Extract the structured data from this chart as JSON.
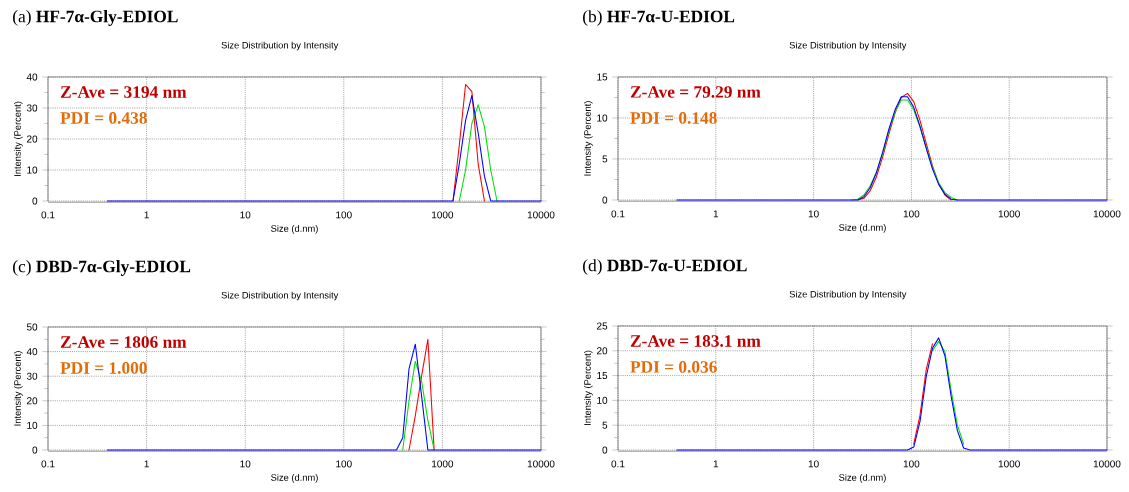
{
  "chart_data": [
    {
      "type": "line",
      "title": "(a) **HF-7α-Gly-EDIOL**",
      "subtitle": "Size Distribution by Intensity",
      "xlabel": "Size (d.nm)",
      "ylabel": "Intensity (Percent)",
      "annotations": [
        "Z-Ave = 3194 nm",
        "PDI = 0.438"
      ],
      "log": "x",
      "grid": true,
      "xlim": [
        0.1,
        10000
      ],
      "ylim": [
        0,
        40
      ],
      "xticks": [
        0.1,
        1,
        10,
        100,
        1000,
        10000
      ],
      "yticks": [
        0,
        10,
        20,
        30,
        40
      ],
      "series": [
        {
          "color": "#ff0000",
          "x": [
            1281,
            1484,
            1718,
            1990,
            2305,
            2669
          ],
          "values": [
            0,
            18,
            37.6,
            35.3,
            12,
            0
          ]
        },
        {
          "color": "#00e000",
          "x": [
            1484,
            1718,
            1990,
            2305,
            2669,
            3091,
            3580
          ],
          "values": [
            0,
            10,
            25,
            31,
            24,
            10,
            0
          ]
        },
        {
          "color": "#0000ff",
          "x": [
            0.4,
            1281,
            1484,
            1718,
            1990,
            2305,
            2669,
            3091,
            10000
          ],
          "values": [
            0,
            0,
            12,
            26,
            34,
            22,
            8,
            0,
            0
          ]
        }
      ]
    },
    {
      "type": "line",
      "title": "(b) **HF-7α-U-EDIOL**",
      "subtitle": "Size Distribution by Intensity",
      "xlabel": "Size (d.nm)",
      "ylabel": "Intensity (Percent)",
      "annotations": [
        "Z-Ave = 79.29 nm",
        "PDI = 0.148"
      ],
      "log": "x",
      "grid": true,
      "xlim": [
        0.1,
        10000
      ],
      "ylim": [
        0,
        15
      ],
      "xticks": [
        0.1,
        1,
        10,
        100,
        1000,
        10000
      ],
      "yticks": [
        0,
        5,
        10,
        15
      ],
      "series": [
        {
          "color": "#ff0000",
          "x": [
            28.21,
            32.67,
            37.84,
            43.82,
            50.75,
            58.77,
            68.06,
            78.82,
            91.28,
            105.7,
            122.4,
            141.8,
            164.2,
            190.1,
            220.2,
            255.0
          ],
          "values": [
            0,
            0.2,
            1.1,
            2.8,
            5.2,
            8.0,
            10.6,
            12.5,
            13.0,
            12.0,
            9.7,
            6.9,
            4.2,
            2.0,
            0.6,
            0
          ]
        },
        {
          "color": "#00e000",
          "x": [
            24.36,
            28.21,
            32.67,
            37.84,
            43.82,
            50.75,
            58.77,
            68.06,
            78.82,
            91.28,
            105.7,
            122.4,
            141.8,
            164.2,
            190.1,
            220.2,
            255.0,
            295.3
          ],
          "values": [
            0,
            0.1,
            0.6,
            1.7,
            3.4,
            5.6,
            8.4,
            10.7,
            12.2,
            12.2,
            11.0,
            8.9,
            6.4,
            4.0,
            2.1,
            0.9,
            0.3,
            0
          ]
        },
        {
          "color": "#0000ff",
          "x": [
            0.4,
            28.21,
            32.67,
            37.84,
            43.82,
            50.75,
            58.77,
            68.06,
            78.82,
            91.28,
            105.7,
            122.4,
            141.8,
            164.2,
            190.1,
            220.2,
            255.0,
            295.3,
            10000
          ],
          "values": [
            0,
            0,
            0.4,
            1.5,
            3.3,
            5.8,
            8.6,
            11.0,
            12.6,
            12.6,
            11.3,
            9.0,
            6.3,
            3.8,
            1.9,
            0.7,
            0.1,
            0,
            0
          ]
        }
      ]
    },
    {
      "type": "line",
      "title": "(c) **DBD-7α-Gly-EDIOL**",
      "subtitle": "Size Distribution by Intensity",
      "xlabel": "Size (d.nm)",
      "ylabel": "Intensity (Percent)",
      "annotations": [
        "Z-Ave = 1806 nm",
        "PDI = 1.000"
      ],
      "log": "x",
      "grid": true,
      "xlim": [
        0.1,
        10000
      ],
      "ylim": [
        0,
        50
      ],
      "xticks": [
        0.1,
        1,
        10,
        100,
        1000,
        10000
      ],
      "yticks": [
        0,
        10,
        20,
        30,
        40,
        50
      ],
      "series": [
        {
          "color": "#ff0000",
          "x": [
            458.7,
            531.2,
            615.1,
            712.4,
            825.0
          ],
          "values": [
            0,
            14,
            30,
            45,
            0
          ]
        },
        {
          "color": "#00e000",
          "x": [
            396.1,
            458.7,
            531.2,
            615.1,
            712.4,
            825.0
          ],
          "values": [
            0,
            20,
            36,
            28,
            12,
            0
          ]
        },
        {
          "color": "#0000ff",
          "x": [
            0.4,
            342.0,
            396.1,
            458.7,
            531.2,
            615.1,
            712.4,
            10000
          ],
          "values": [
            0,
            0,
            5,
            33,
            43,
            22,
            0,
            0
          ]
        }
      ]
    },
    {
      "type": "line",
      "title": "(d) **DBD-7α-U-EDIOL**",
      "subtitle": "Size Distribution by Intensity",
      "xlabel": "Size (d.nm)",
      "ylabel": "Intensity (Percent)",
      "annotations": [
        "Z-Ave = 183.1 nm",
        "PDI = 0.036"
      ],
      "log": "x",
      "grid": true,
      "xlim": [
        0.1,
        10000
      ],
      "ylim": [
        0,
        25
      ],
      "xticks": [
        0.1,
        1,
        10,
        100,
        1000,
        10000
      ],
      "yticks": [
        0,
        5,
        10,
        15,
        20,
        25
      ],
      "series": [
        {
          "color": "#ff0000",
          "x": [
            105.7,
            122.4,
            141.8,
            164.2
          ],
          "values": [
            1.2,
            7.0,
            16.2,
            21.4
          ]
        },
        {
          "color": "#00e000",
          "x": [
            164.2,
            190.1,
            220.2,
            255.0,
            295.3,
            342.0
          ],
          "values": [
            20,
            21.9,
            19.8,
            12,
            5,
            1.2
          ]
        },
        {
          "color": "#0000ff",
          "x": [
            0.4,
            91.28,
            105.7,
            122.4,
            141.8,
            164.2,
            190.1,
            220.2,
            255.0,
            295.3,
            342.0,
            396.1,
            10000
          ],
          "values": [
            0,
            0,
            0.6,
            5.7,
            14.8,
            20.5,
            22.6,
            19,
            10.8,
            3.9,
            0.4,
            0,
            0
          ]
        }
      ]
    }
  ]
}
